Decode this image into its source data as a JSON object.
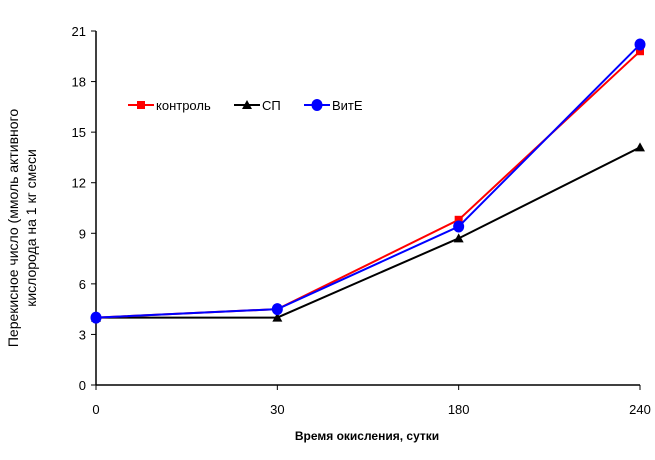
{
  "chart_data": {
    "type": "line",
    "xlabel": "Время окисления, сутки",
    "ylabel": [
      "Перекисное число (ммоль активного",
      "кислорода на 1 кг смеси"
    ],
    "categories": [
      "0",
      "30",
      "180",
      "240"
    ],
    "ylim": [
      0,
      21
    ],
    "yticks": [
      "0",
      "3",
      "6",
      "9",
      "12",
      "15",
      "18",
      "21"
    ],
    "legend_position": "top-left",
    "grid": false,
    "series": [
      {
        "name": "контроль",
        "color": "#ff0000",
        "marker": "square",
        "values": [
          4.0,
          4.5,
          9.8,
          19.8
        ]
      },
      {
        "name": "СП",
        "color": "#000000",
        "marker": "triangle",
        "values": [
          4.0,
          4.0,
          8.7,
          14.1
        ]
      },
      {
        "name": "ВитЕ",
        "color": "#0000ff",
        "marker": "circle",
        "values": [
          4.0,
          4.5,
          9.4,
          20.2
        ]
      }
    ]
  }
}
